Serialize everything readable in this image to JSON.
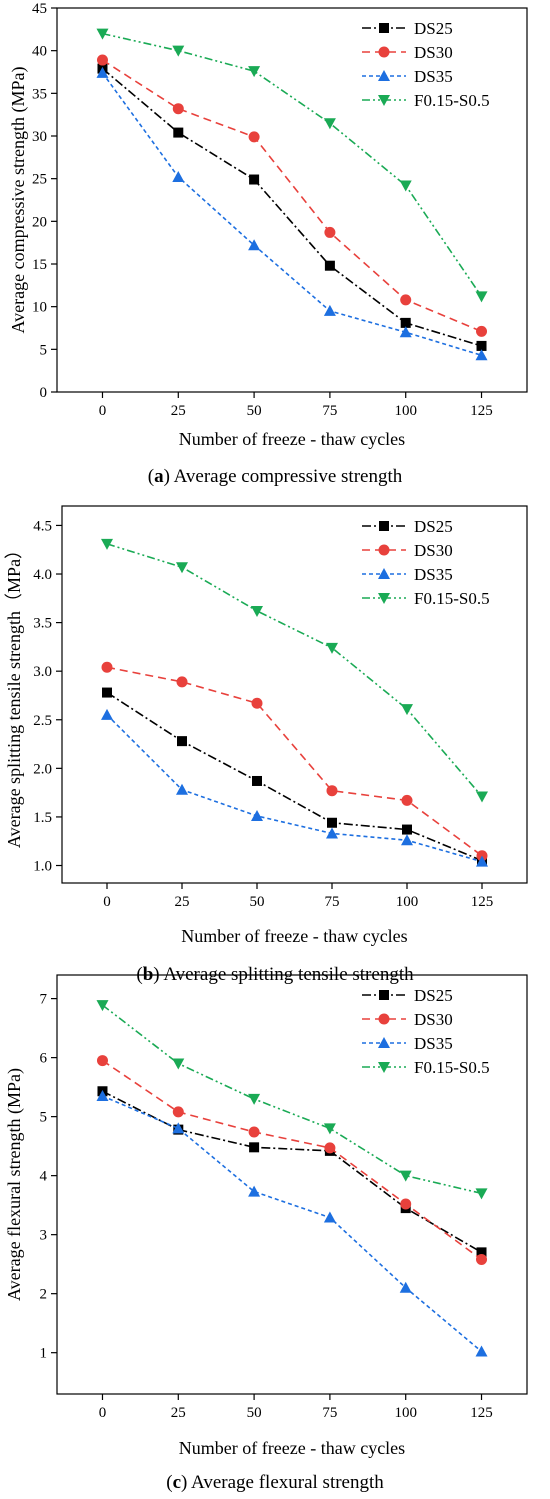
{
  "x_axis_label": "Number of freeze - thaw cycles",
  "styles": {
    "DS25": {
      "color": "#000000",
      "marker": "square",
      "dash": "9,3,2,3"
    },
    "DS30": {
      "color": "#e8413c",
      "marker": "circle",
      "dash": "8,5"
    },
    "DS35": {
      "color": "#1d6fe0",
      "marker": "triangle-up",
      "dash": "4,3"
    },
    "F0.15-S0.5": {
      "color": "#1aaa55",
      "marker": "triangle-down",
      "dash": "8,3,2,3,2,3"
    }
  },
  "chart_data": [
    {
      "type": "line",
      "caption_letter": "a",
      "caption_text": "Average compressive strength",
      "ylabel": "Average compressive strength (MPa)",
      "xlabel": "Number of freeze - thaw cycles",
      "x": [
        0,
        25,
        50,
        75,
        100,
        125
      ],
      "xlim": [
        -15,
        140
      ],
      "ylim": [
        0,
        45
      ],
      "yticks": [
        0,
        5,
        10,
        15,
        20,
        25,
        30,
        35,
        40,
        45
      ],
      "ytick_labels": [
        "0",
        "5",
        "10",
        "15",
        "20",
        "25",
        "30",
        "35",
        "40",
        "45"
      ],
      "legend_position": "top-right",
      "grid": false,
      "series": [
        {
          "name": "DS25",
          "values": [
            37.9,
            30.4,
            24.9,
            14.8,
            8.1,
            5.4
          ]
        },
        {
          "name": "DS30",
          "values": [
            38.9,
            33.2,
            29.9,
            18.7,
            10.8,
            7.1
          ]
        },
        {
          "name": "DS35",
          "values": [
            37.4,
            25.2,
            17.2,
            9.5,
            7.0,
            4.3
          ]
        },
        {
          "name": "F0.15-S0.5",
          "values": [
            42.0,
            40.0,
            37.6,
            31.5,
            24.2,
            11.2
          ]
        }
      ]
    },
    {
      "type": "line",
      "caption_letter": "b",
      "caption_text": "Average splitting tensile strength",
      "ylabel": "Average splitting tensile strength（MPa）",
      "xlabel": "Number of freeze - thaw cycles",
      "x": [
        0,
        25,
        50,
        75,
        100,
        125
      ],
      "xlim": [
        -15,
        140
      ],
      "ylim": [
        0.82,
        4.7
      ],
      "yticks": [
        1.0,
        1.5,
        2.0,
        2.5,
        3.0,
        3.5,
        4.0,
        4.5
      ],
      "ytick_labels": [
        "1.0",
        "1.5",
        "2.0",
        "2.5",
        "3.0",
        "3.5",
        "4.0",
        "4.5"
      ],
      "legend_position": "top-right",
      "grid": false,
      "series": [
        {
          "name": "DS25",
          "values": [
            2.78,
            2.28,
            1.87,
            1.44,
            1.37,
            1.05
          ]
        },
        {
          "name": "DS30",
          "values": [
            3.04,
            2.89,
            2.67,
            1.77,
            1.67,
            1.1
          ]
        },
        {
          "name": "DS35",
          "values": [
            2.55,
            1.78,
            1.51,
            1.33,
            1.26,
            1.04
          ]
        },
        {
          "name": "F0.15-S0.5",
          "values": [
            4.31,
            4.07,
            3.62,
            3.24,
            2.61,
            1.71
          ]
        }
      ]
    },
    {
      "type": "line",
      "caption_letter": "c",
      "caption_text": "Average flexural strength",
      "ylabel": "Average flexural strength (MPa)",
      "xlabel": "Number of freeze - thaw cycles",
      "x": [
        0,
        25,
        50,
        75,
        100,
        125
      ],
      "xlim": [
        -15,
        140
      ],
      "ylim": [
        0.3,
        7.4
      ],
      "yticks": [
        1,
        2,
        3,
        4,
        5,
        6,
        7
      ],
      "ytick_labels": [
        "1",
        "2",
        "3",
        "4",
        "5",
        "6",
        "7"
      ],
      "legend_position": "top-right",
      "grid": false,
      "series": [
        {
          "name": "DS25",
          "values": [
            5.43,
            4.78,
            4.48,
            4.42,
            3.45,
            2.7
          ]
        },
        {
          "name": "DS30",
          "values": [
            5.95,
            5.08,
            4.74,
            4.47,
            3.52,
            2.58
          ]
        },
        {
          "name": "DS35",
          "values": [
            5.35,
            4.8,
            3.73,
            3.29,
            2.1,
            1.02
          ]
        },
        {
          "name": "F0.15-S0.5",
          "values": [
            6.89,
            5.9,
            5.3,
            4.8,
            4.0,
            3.7
          ]
        }
      ]
    }
  ]
}
